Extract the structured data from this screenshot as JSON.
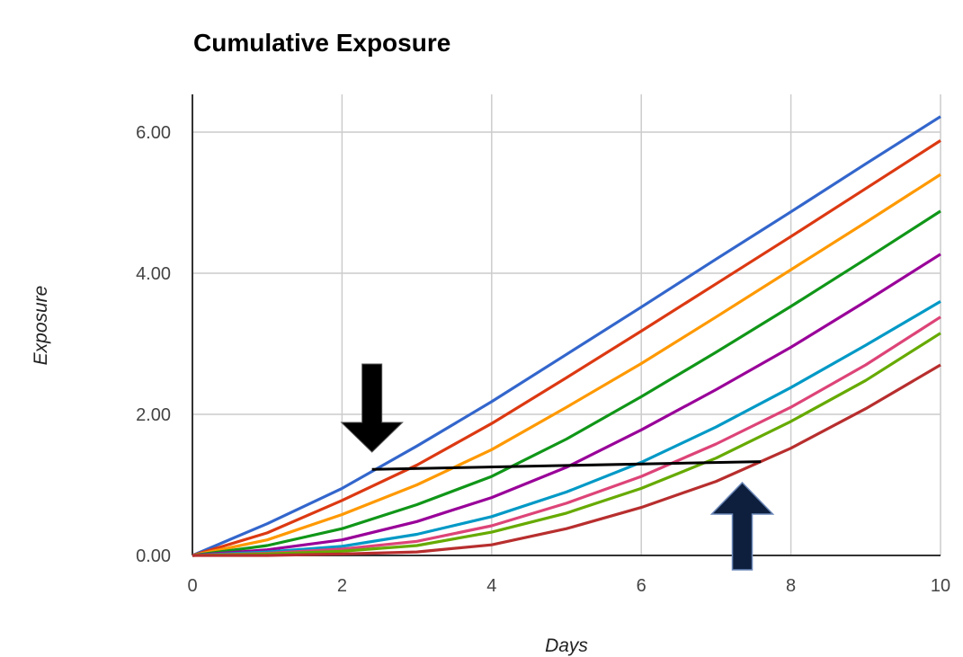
{
  "chart_data": {
    "type": "line",
    "title": "Cumulative Exposure",
    "xlabel": "Days",
    "ylabel": "Exposure",
    "xlim": [
      0,
      10
    ],
    "ylim": [
      0,
      6.5
    ],
    "x_ticks": [
      "0",
      "2",
      "4",
      "6",
      "8",
      "10"
    ],
    "y_ticks": [
      "0.00",
      "2.00",
      "4.00",
      "6.00"
    ],
    "grid": true,
    "legend": "none",
    "x": [
      0,
      1,
      2,
      3,
      4,
      5,
      6,
      7,
      8,
      9,
      10
    ],
    "series": [
      {
        "color": "#3366cc",
        "values": [
          0,
          0.45,
          0.95,
          1.55,
          2.18,
          2.85,
          3.52,
          4.2,
          4.87,
          5.55,
          6.22
        ]
      },
      {
        "color": "#dc3912",
        "values": [
          0,
          0.32,
          0.78,
          1.28,
          1.87,
          2.52,
          3.18,
          3.85,
          4.52,
          5.2,
          5.88
        ]
      },
      {
        "color": "#ff9900",
        "values": [
          0,
          0.22,
          0.58,
          1.0,
          1.5,
          2.1,
          2.72,
          3.38,
          4.05,
          4.72,
          5.4
        ]
      },
      {
        "color": "#109618",
        "values": [
          0,
          0.14,
          0.38,
          0.72,
          1.12,
          1.65,
          2.25,
          2.88,
          3.53,
          4.2,
          4.88
        ]
      },
      {
        "color": "#990099",
        "values": [
          0,
          0.08,
          0.22,
          0.48,
          0.82,
          1.25,
          1.78,
          2.35,
          2.95,
          3.6,
          4.27
        ]
      },
      {
        "color": "#0099c6",
        "values": [
          0,
          0.05,
          0.13,
          0.3,
          0.55,
          0.9,
          1.32,
          1.82,
          2.38,
          2.98,
          3.6
        ]
      },
      {
        "color": "#dd4477",
        "values": [
          0,
          0.03,
          0.09,
          0.2,
          0.42,
          0.74,
          1.12,
          1.58,
          2.1,
          2.7,
          3.38
        ]
      },
      {
        "color": "#66aa00",
        "values": [
          0,
          0.02,
          0.06,
          0.14,
          0.33,
          0.6,
          0.95,
          1.38,
          1.9,
          2.48,
          3.15
        ]
      },
      {
        "color": "#b82e2e",
        "values": [
          0,
          0.0,
          0.02,
          0.05,
          0.15,
          0.38,
          0.68,
          1.05,
          1.52,
          2.08,
          2.7
        ]
      }
    ],
    "annotations": {
      "line": {
        "color": "#000000",
        "from": [
          2.4,
          1.22
        ],
        "to": [
          7.6,
          1.33
        ]
      },
      "arrow_down": {
        "x": 2.4,
        "color": "#000000"
      },
      "arrow_up": {
        "x": 7.35,
        "color": "#000000",
        "fill": "#0d1f3d"
      }
    }
  }
}
